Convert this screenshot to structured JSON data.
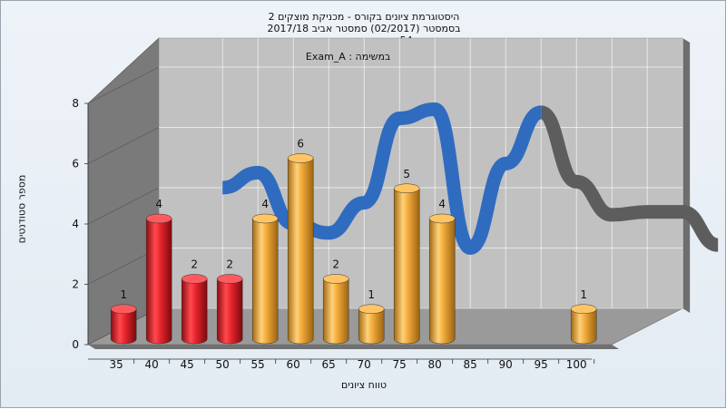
{
  "chart_data": {
    "type": "bar",
    "title_lines": [
      "היסטוגרמת ציונים בקורס - מכניקת מוצקים 2",
      "בסמסטר  (02/2017)  סמסטר אביב 2017/18",
      "54 - סטודנטים רשומים"
    ],
    "annotation": "Exam_A : במשימה",
    "xlabel": "טווח ציונים",
    "ylabel": "מספר סטודנטים",
    "x_ticks": [
      "35",
      "40",
      "45",
      "50",
      "55",
      "60",
      "65",
      "70",
      "75",
      "80",
      "85",
      "90",
      "95",
      "100"
    ],
    "y_ticks": [
      "0",
      "2",
      "4",
      "6",
      "8"
    ],
    "ylim": [
      0,
      8
    ],
    "bars": [
      {
        "x": 35,
        "value": 1,
        "label": "1",
        "color": "red"
      },
      {
        "x": 40,
        "value": 4,
        "label": "4",
        "color": "red"
      },
      {
        "x": 45,
        "value": 2,
        "label": "2",
        "color": "red"
      },
      {
        "x": 50,
        "value": 2,
        "label": "2",
        "color": "red"
      },
      {
        "x": 55,
        "value": 4,
        "label": "4",
        "color": "orange"
      },
      {
        "x": 60,
        "value": 6,
        "label": "6",
        "color": "orange"
      },
      {
        "x": 65,
        "value": 2,
        "label": "2",
        "color": "orange"
      },
      {
        "x": 70,
        "value": 1,
        "label": "1",
        "color": "orange"
      },
      {
        "x": 75,
        "value": 5,
        "label": "5",
        "color": "orange"
      },
      {
        "x": 80,
        "value": 4,
        "label": "4",
        "color": "orange"
      },
      {
        "x": 100,
        "value": 1,
        "label": "1",
        "color": "orange"
      }
    ],
    "trend_line": [
      [
        40,
        4
      ],
      [
        45,
        4.5
      ],
      [
        50,
        2.8
      ],
      [
        55,
        2.5
      ],
      [
        60,
        3.5
      ],
      [
        65,
        6.3
      ],
      [
        70,
        6.6
      ],
      [
        75,
        2
      ],
      [
        80,
        4.8
      ],
      [
        85,
        6.5
      ],
      [
        90,
        4.2
      ],
      [
        95,
        3.1
      ],
      [
        100,
        3.2
      ],
      [
        105,
        3.2
      ],
      [
        110,
        2.1
      ]
    ],
    "trend_gray_from": 85,
    "colors": {
      "red": "#e8252d",
      "orange": "#f2aa3a",
      "trend": "#2f6cc0",
      "trend_gray": "#5d5d5d",
      "back_wall": "#c1c1c1",
      "side_wall": "#7a7a7a",
      "floor": "#9a9a9a"
    },
    "grid": true,
    "style": "3d"
  }
}
